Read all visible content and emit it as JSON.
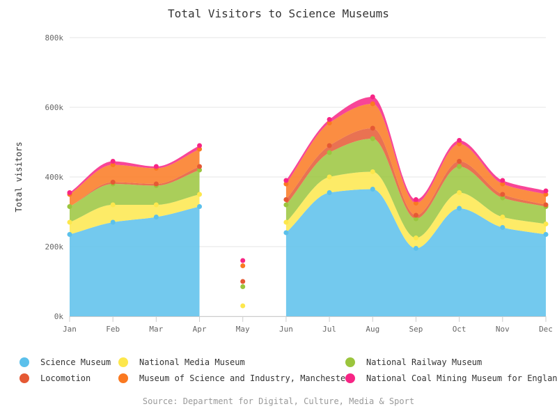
{
  "chart_data": {
    "type": "area",
    "stacked": true,
    "smooth": true,
    "title": "Total Visitors to Science Museums",
    "ylabel": "Total visitors",
    "xlabel": "",
    "source": "Source: Department for Digital, Culture, Media & Sport",
    "categories": [
      "Jan",
      "Feb",
      "Mar",
      "Apr",
      "May",
      "Jun",
      "Jul",
      "Aug",
      "Sep",
      "Oct",
      "Nov",
      "Dec"
    ],
    "y_ticks": [
      "0k",
      "200k",
      "400k",
      "600k",
      "800k"
    ],
    "ylim": [
      0,
      800000
    ],
    "grid": true,
    "legend_position": "bottom",
    "series": [
      {
        "name": "Science Museum",
        "color": "#5bc0eb",
        "values": [
          235000,
          270000,
          285000,
          315000,
          0,
          240000,
          355000,
          365000,
          195000,
          310000,
          255000,
          235000
        ]
      },
      {
        "name": "National Media Museum",
        "color": "#fde74c",
        "values": [
          35000,
          50000,
          35000,
          35000,
          30000,
          30000,
          45000,
          50000,
          30000,
          45000,
          30000,
          30000
        ]
      },
      {
        "name": "National Railway Museum",
        "color": "#9bc53d",
        "values": [
          45000,
          60000,
          55000,
          70000,
          55000,
          50000,
          70000,
          95000,
          55000,
          75000,
          55000,
          50000
        ]
      },
      {
        "name": "Locomotion",
        "color": "#e55934",
        "values": [
          0,
          5000,
          5000,
          10000,
          15000,
          15000,
          20000,
          30000,
          10000,
          15000,
          10000,
          5000
        ]
      },
      {
        "name": "Museum of Science and Industry, Manchester",
        "color": "#fa7921",
        "values": [
          35000,
          50000,
          45000,
          50000,
          45000,
          45000,
          65000,
          70000,
          35000,
          50000,
          30000,
          30000
        ]
      },
      {
        "name": "National Coal Mining Museum for England",
        "color": "#f72585",
        "values": [
          5000,
          10000,
          5000,
          10000,
          15000,
          10000,
          10000,
          20000,
          10000,
          10000,
          10000,
          10000
        ]
      }
    ],
    "gaps_after_index": [
      3,
      4
    ]
  }
}
